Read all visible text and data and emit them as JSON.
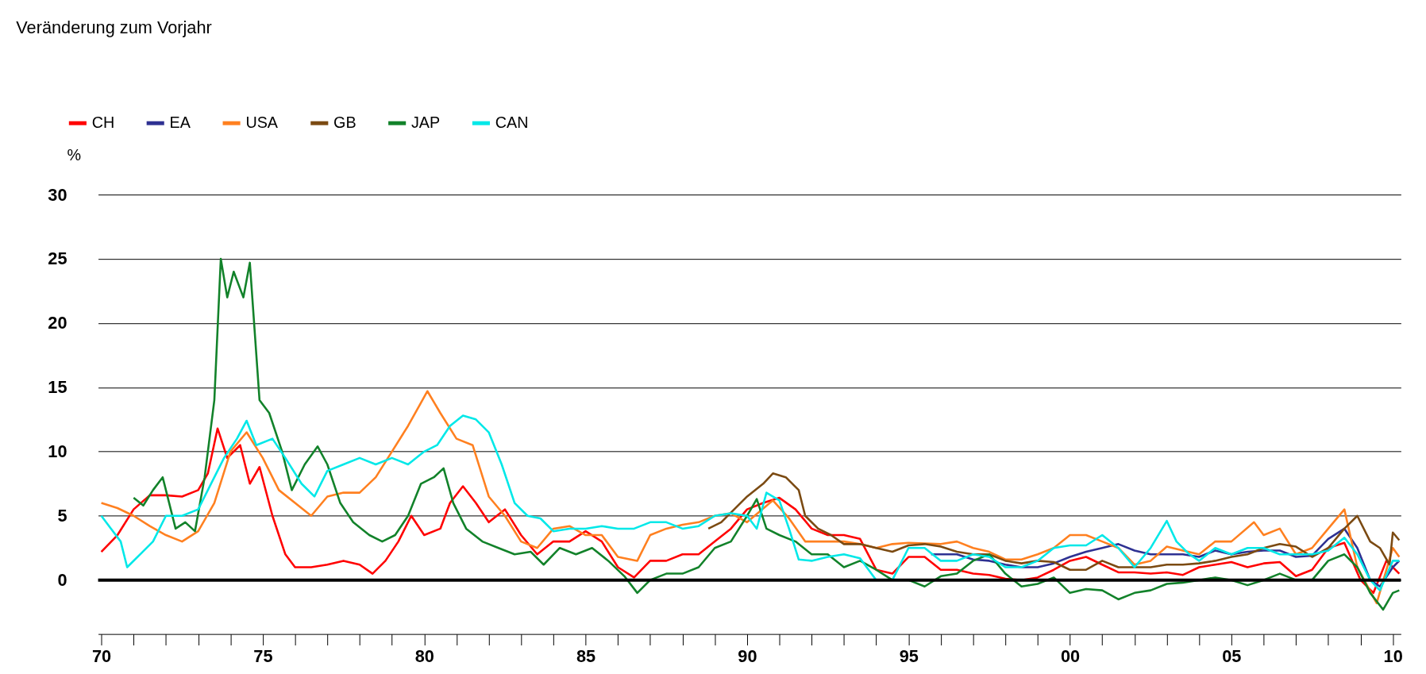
{
  "chart_data": {
    "type": "line",
    "title": "Veränderung zum Vorjahr",
    "ylabel": "%",
    "xlim": [
      1969.9,
      2010.25
    ],
    "ylim": [
      -4.2,
      30
    ],
    "yticks": [
      0,
      5,
      10,
      15,
      20,
      25,
      30
    ],
    "xticks": [
      {
        "value": 1970,
        "label": "70"
      },
      {
        "value": 1971,
        "label": null
      },
      {
        "value": 1972,
        "label": null
      },
      {
        "value": 1973,
        "label": null
      },
      {
        "value": 1974,
        "label": null
      },
      {
        "value": 1975,
        "label": "75"
      },
      {
        "value": 1976,
        "label": null
      },
      {
        "value": 1977,
        "label": null
      },
      {
        "value": 1978,
        "label": null
      },
      {
        "value": 1979,
        "label": null
      },
      {
        "value": 1980,
        "label": "80"
      },
      {
        "value": 1981,
        "label": null
      },
      {
        "value": 1982,
        "label": null
      },
      {
        "value": 1983,
        "label": null
      },
      {
        "value": 1984,
        "label": null
      },
      {
        "value": 1985,
        "label": "85"
      },
      {
        "value": 1986,
        "label": null
      },
      {
        "value": 1987,
        "label": null
      },
      {
        "value": 1988,
        "label": null
      },
      {
        "value": 1989,
        "label": null
      },
      {
        "value": 1990,
        "label": "90"
      },
      {
        "value": 1991,
        "label": null
      },
      {
        "value": 1992,
        "label": null
      },
      {
        "value": 1993,
        "label": null
      },
      {
        "value": 1994,
        "label": null
      },
      {
        "value": 1995,
        "label": "95"
      },
      {
        "value": 1996,
        "label": null
      },
      {
        "value": 1997,
        "label": null
      },
      {
        "value": 1998,
        "label": null
      },
      {
        "value": 1999,
        "label": null
      },
      {
        "value": 2000,
        "label": "00"
      },
      {
        "value": 2001,
        "label": null
      },
      {
        "value": 2002,
        "label": null
      },
      {
        "value": 2003,
        "label": null
      },
      {
        "value": 2004,
        "label": null
      },
      {
        "value": 2005,
        "label": "05"
      },
      {
        "value": 2006,
        "label": null
      },
      {
        "value": 2007,
        "label": null
      },
      {
        "value": 2008,
        "label": null
      },
      {
        "value": 2009,
        "label": null
      },
      {
        "value": 2010,
        "label": "10"
      }
    ],
    "grid": "y",
    "legend": "top left",
    "line_style": "solid",
    "marker": "none",
    "ref_lines": [
      {
        "axis": "y",
        "value": 0,
        "label": null,
        "color": "#000000"
      }
    ],
    "series": [
      {
        "name": "CH",
        "color": "#ff0000",
        "x": [
          1970,
          1970.5,
          1971,
          1971.5,
          1972,
          1972.5,
          1973,
          1973.3,
          1973.6,
          1973.9,
          1974.3,
          1974.6,
          1974.9,
          1975.3,
          1975.7,
          1976,
          1976.5,
          1977,
          1977.5,
          1978,
          1978.4,
          1978.8,
          1979.2,
          1979.6,
          1980,
          1980.5,
          1980.8,
          1981.2,
          1981.6,
          1982,
          1982.5,
          1983,
          1983.5,
          1984,
          1984.5,
          1985,
          1985.5,
          1986,
          1986.5,
          1987,
          1987.5,
          1988,
          1988.5,
          1989,
          1989.5,
          1990,
          1990.5,
          1991,
          1991.5,
          1992,
          1992.5,
          1993,
          1993.5,
          1994,
          1994.5,
          1995,
          1995.5,
          1996,
          1996.5,
          1997,
          1997.5,
          1998,
          1998.5,
          1999,
          1999.5,
          2000,
          2000.5,
          2001,
          2001.5,
          2002,
          2002.5,
          2003,
          2003.5,
          2004,
          2004.5,
          2005,
          2005.5,
          2006,
          2006.5,
          2007,
          2007.5,
          2008,
          2008.5,
          2009,
          2009.4,
          2009.8,
          2010.2
        ],
        "values": [
          2.2,
          3.5,
          5.5,
          6.6,
          6.6,
          6.5,
          7,
          8.3,
          11.8,
          9.5,
          10.5,
          7.5,
          8.8,
          5,
          2,
          1,
          1,
          1.2,
          1.5,
          1.2,
          0.5,
          1.5,
          3,
          5,
          3.5,
          4,
          6,
          7.3,
          6,
          4.5,
          5.5,
          3.5,
          2,
          3,
          3,
          3.8,
          3,
          1,
          0.2,
          1.5,
          1.5,
          2,
          2,
          3,
          4,
          5.5,
          6,
          6.4,
          5.5,
          4,
          3.5,
          3.5,
          3.2,
          0.8,
          0.5,
          1.8,
          1.8,
          0.8,
          0.8,
          0.5,
          0.4,
          0.1,
          0,
          0.2,
          0.8,
          1.5,
          1.8,
          1.2,
          0.6,
          0.6,
          0.5,
          0.6,
          0.4,
          1,
          1.2,
          1.4,
          1,
          1.3,
          1.4,
          0.3,
          0.8,
          2.5,
          2.9,
          0,
          -1,
          1.5,
          0.5
        ]
      },
      {
        "name": "EA",
        "color": "#2e3192",
        "x": [
          1995.7,
          1996,
          1996.5,
          1997,
          1997.5,
          1998,
          1998.5,
          1999,
          1999.5,
          2000,
          2000.5,
          2001,
          2001.5,
          2002,
          2002.5,
          2003,
          2003.5,
          2004,
          2004.5,
          2005,
          2005.5,
          2006,
          2006.5,
          2007,
          2007.5,
          2008,
          2008.5,
          2008.9,
          2009.3,
          2009.6,
          2010,
          2010.2
        ],
        "values": [
          2,
          2,
          2,
          1.6,
          1.5,
          1.2,
          1,
          1,
          1.3,
          1.8,
          2.2,
          2.5,
          2.8,
          2.3,
          2,
          2,
          2,
          1.8,
          2.3,
          2,
          2.2,
          2.3,
          2.3,
          1.8,
          1.9,
          3.2,
          4,
          2.5,
          0,
          -0.5,
          1,
          1.5
        ]
      },
      {
        "name": "USA",
        "color": "#ff8020",
        "x": [
          1970,
          1970.5,
          1971,
          1971.5,
          1972,
          1972.5,
          1973,
          1973.5,
          1974,
          1974.5,
          1975,
          1975.5,
          1976,
          1976.5,
          1977,
          1977.5,
          1978,
          1978.5,
          1979,
          1979.5,
          1980.1,
          1980.5,
          1981,
          1981.5,
          1982,
          1982.5,
          1983,
          1983.5,
          1984,
          1984.5,
          1985,
          1985.5,
          1986,
          1986.6,
          1987,
          1987.5,
          1988,
          1988.5,
          1989,
          1989.5,
          1990,
          1990.8,
          1991.3,
          1991.8,
          1992.5,
          1993,
          1993.5,
          1994,
          1994.5,
          1995,
          1996,
          1996.5,
          1997,
          1997.5,
          1998,
          1998.5,
          1999,
          1999.5,
          2000,
          2000.5,
          2001,
          2001.5,
          2002,
          2002.5,
          2003,
          2003.5,
          2004,
          2004.5,
          2005,
          2005.7,
          2006,
          2006.5,
          2007,
          2007.5,
          2008,
          2008.5,
          2008.9,
          2009.5,
          2010,
          2010.2
        ],
        "values": [
          6,
          5.6,
          5,
          4.2,
          3.5,
          3,
          3.8,
          6,
          10,
          11.5,
          9.5,
          7,
          6,
          5,
          6.5,
          6.8,
          6.8,
          8,
          10,
          12,
          14.7,
          13,
          11,
          10.5,
          6.5,
          5,
          3,
          2.5,
          4,
          4.2,
          3.5,
          3.5,
          1.8,
          1.5,
          3.5,
          4,
          4.3,
          4.5,
          5,
          5.2,
          4.5,
          6.2,
          4.8,
          3,
          3,
          3,
          2.8,
          2.5,
          2.8,
          2.9,
          2.8,
          3,
          2.5,
          2.2,
          1.6,
          1.6,
          2,
          2.5,
          3.5,
          3.5,
          3,
          2.5,
          1.2,
          1.5,
          2.6,
          2.3,
          2,
          3,
          3,
          4.5,
          3.5,
          4,
          2,
          2.5,
          4,
          5.5,
          1,
          -1.8,
          2.5,
          1.8
        ]
      },
      {
        "name": "GB",
        "color": "#7b4a12",
        "x": [
          1988.8,
          1989.2,
          1989.6,
          1990,
          1990.5,
          1990.8,
          1991.2,
          1991.6,
          1991.8,
          1992.2,
          1992.6,
          1993,
          1993.5,
          1994,
          1994.5,
          1995,
          1995.5,
          1996,
          1996.5,
          1997,
          1997.5,
          1998,
          1998.5,
          1999,
          1999.5,
          2000,
          2000.5,
          2001,
          2001.5,
          2002,
          2002.5,
          2003,
          2003.5,
          2004,
          2004.5,
          2005,
          2005.5,
          2006,
          2006.5,
          2007,
          2007.5,
          2008,
          2008.5,
          2008.9,
          2009.3,
          2009.6,
          2009.9,
          2010,
          2010.2
        ],
        "values": [
          4,
          4.5,
          5.5,
          6.5,
          7.5,
          8.3,
          8,
          7,
          5,
          4,
          3.5,
          2.8,
          2.8,
          2.5,
          2.2,
          2.7,
          2.8,
          2.6,
          2.2,
          2,
          2,
          1.5,
          1.3,
          1.5,
          1.4,
          0.8,
          0.8,
          1.5,
          1,
          1,
          1,
          1.2,
          1.2,
          1.3,
          1.5,
          1.8,
          2,
          2.5,
          2.8,
          2.6,
          1.8,
          2.5,
          4,
          5,
          3,
          2.5,
          1.2,
          3.7,
          3.1
        ]
      },
      {
        "name": "JAP",
        "color": "#12822a",
        "x": [
          1971,
          1971.3,
          1971.6,
          1971.9,
          1972.3,
          1972.6,
          1972.9,
          1973.2,
          1973.5,
          1973.7,
          1973.9,
          1974.1,
          1974.4,
          1974.6,
          1974.9,
          1975.2,
          1975.6,
          1975.9,
          1976.3,
          1976.7,
          1977,
          1977.4,
          1977.8,
          1978.3,
          1978.7,
          1979.1,
          1979.5,
          1979.9,
          1980.3,
          1980.6,
          1980.9,
          1981.3,
          1981.8,
          1982.3,
          1982.8,
          1983.3,
          1983.7,
          1984.2,
          1984.7,
          1985.2,
          1985.7,
          1986.2,
          1986.6,
          1987,
          1987.5,
          1988,
          1988.5,
          1989,
          1989.5,
          1990,
          1990.3,
          1990.6,
          1991,
          1991.5,
          1992,
          1992.5,
          1993,
          1993.5,
          1994,
          1994.5,
          1995,
          1995.5,
          1996,
          1996.5,
          1997,
          1997.5,
          1998,
          1998.5,
          1999,
          1999.5,
          2000,
          2000.5,
          2001,
          2001.5,
          2002,
          2002.5,
          2003,
          2003.5,
          2004,
          2004.5,
          2005,
          2005.5,
          2006,
          2006.5,
          2007,
          2007.5,
          2008,
          2008.5,
          2008.9,
          2009.3,
          2009.7,
          2010,
          2010.2
        ],
        "values": [
          6.4,
          5.8,
          7,
          8,
          4,
          4.5,
          3.8,
          8,
          14,
          25,
          22,
          24,
          22,
          24.7,
          14,
          13,
          10,
          7,
          9,
          10.4,
          9,
          6,
          4.5,
          3.5,
          3,
          3.5,
          5,
          7.5,
          8,
          8.7,
          6,
          4,
          3,
          2.5,
          2,
          2.2,
          1.2,
          2.5,
          2,
          2.5,
          1.5,
          0.3,
          -1,
          0,
          0.5,
          0.5,
          1,
          2.5,
          3,
          5,
          6.3,
          4,
          3.5,
          3,
          2,
          2,
          1,
          1.5,
          0.8,
          0,
          0,
          -0.5,
          0.3,
          0.5,
          1.5,
          2,
          0.5,
          -0.5,
          -0.3,
          0.2,
          -1,
          -0.7,
          -0.8,
          -1.5,
          -1,
          -0.8,
          -0.3,
          -0.2,
          0,
          0.2,
          0,
          -0.4,
          0,
          0.5,
          0,
          0,
          1.5,
          2,
          1,
          -1,
          -2.3,
          -1,
          -0.8
        ]
      },
      {
        "name": "CAN",
        "color": "#00e8e8",
        "x": [
          1970,
          1970.3,
          1970.6,
          1970.8,
          1971.2,
          1971.6,
          1972,
          1972.5,
          1973,
          1973.5,
          1973.8,
          1974.2,
          1974.5,
          1974.8,
          1975.3,
          1975.7,
          1976.2,
          1976.6,
          1977,
          1977.5,
          1978,
          1978.5,
          1979,
          1979.5,
          1980,
          1980.4,
          1980.8,
          1981.2,
          1981.6,
          1982,
          1982.4,
          1982.8,
          1983.2,
          1983.6,
          1984,
          1984.5,
          1985,
          1985.5,
          1986,
          1986.5,
          1987,
          1987.5,
          1988,
          1988.5,
          1989,
          1989.5,
          1990,
          1990.3,
          1990.6,
          1991,
          1991.3,
          1991.6,
          1992,
          1992.5,
          1993,
          1993.5,
          1994,
          1994.5,
          1995,
          1995.5,
          1996,
          1996.5,
          1997,
          1997.5,
          1998,
          1998.5,
          1999,
          1999.5,
          2000,
          2000.5,
          2001,
          2001.5,
          2002,
          2002.5,
          2003,
          2003.3,
          2003.7,
          2004,
          2004.5,
          2005,
          2005.5,
          2006,
          2006.5,
          2007,
          2007.5,
          2008,
          2008.5,
          2008.9,
          2009.3,
          2009.6,
          2010,
          2010.2
        ],
        "values": [
          5,
          4,
          3,
          1,
          2,
          3,
          5,
          5,
          5.5,
          8,
          9.5,
          11,
          12.4,
          10.5,
          11,
          9.5,
          7.5,
          6.5,
          8.5,
          9,
          9.5,
          9,
          9.5,
          9,
          10,
          10.5,
          12,
          12.8,
          12.5,
          11.5,
          9,
          6,
          5,
          4.8,
          3.8,
          4,
          4,
          4.2,
          4,
          4,
          4.5,
          4.5,
          4,
          4.2,
          5,
          5.2,
          5,
          4,
          6.8,
          6.2,
          4,
          1.6,
          1.5,
          1.8,
          2,
          1.7,
          0,
          0,
          2.5,
          2.5,
          1.5,
          1.5,
          2,
          1.8,
          1,
          1,
          1.5,
          2.5,
          2.7,
          2.7,
          3.5,
          2.5,
          1,
          2.5,
          4.6,
          3,
          2,
          1.5,
          2.5,
          2,
          2.5,
          2.5,
          2,
          2,
          2,
          2.3,
          3.3,
          2,
          0,
          -0.8,
          1.5,
          1.5
        ]
      }
    ]
  }
}
